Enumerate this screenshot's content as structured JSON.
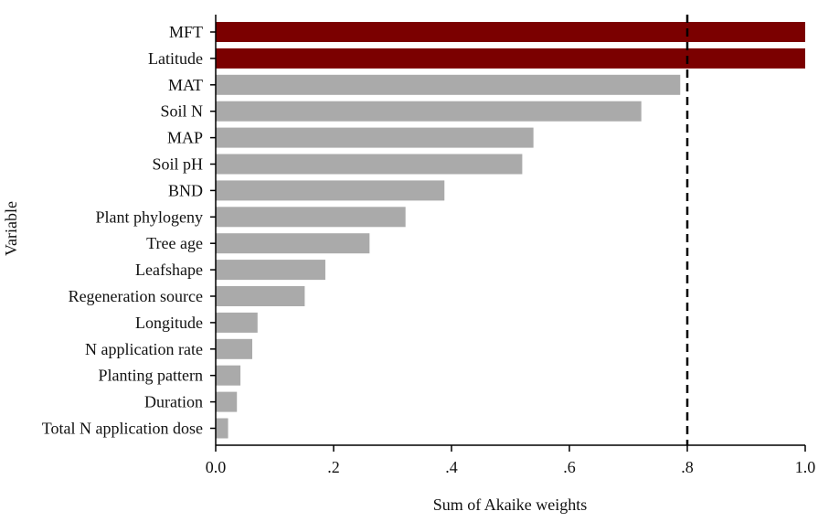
{
  "chart_data": {
    "type": "bar",
    "orientation": "horizontal",
    "title": "",
    "xlabel": "Sum of Akaike weights",
    "ylabel": "Variable",
    "xlim": [
      0,
      1.0
    ],
    "xticks": [
      0.0,
      0.2,
      0.4,
      0.6,
      0.8,
      1.0
    ],
    "xtick_labels": [
      "0.0",
      ".2",
      ".4",
      ".6",
      ".8",
      "1.0"
    ],
    "reference_line": 0.8,
    "grid": false,
    "categories": [
      "MFT",
      "Latitude",
      "MAT",
      "Soil N",
      "MAP",
      "Soil pH",
      "BND",
      "Plant phylogeny",
      "Tree age",
      "Leafshape",
      "Regeneration source",
      "Longitude",
      "N application rate",
      "Planting pattern",
      "Duration",
      "Total N application dose"
    ],
    "values": [
      1.0,
      1.0,
      0.788,
      0.722,
      0.539,
      0.52,
      0.388,
      0.322,
      0.261,
      0.186,
      0.151,
      0.071,
      0.062,
      0.042,
      0.036,
      0.021
    ],
    "colors": {
      "highlight": "#7b0000",
      "default": "#aaaaaa"
    },
    "highlighted": [
      "MFT",
      "Latitude"
    ]
  }
}
